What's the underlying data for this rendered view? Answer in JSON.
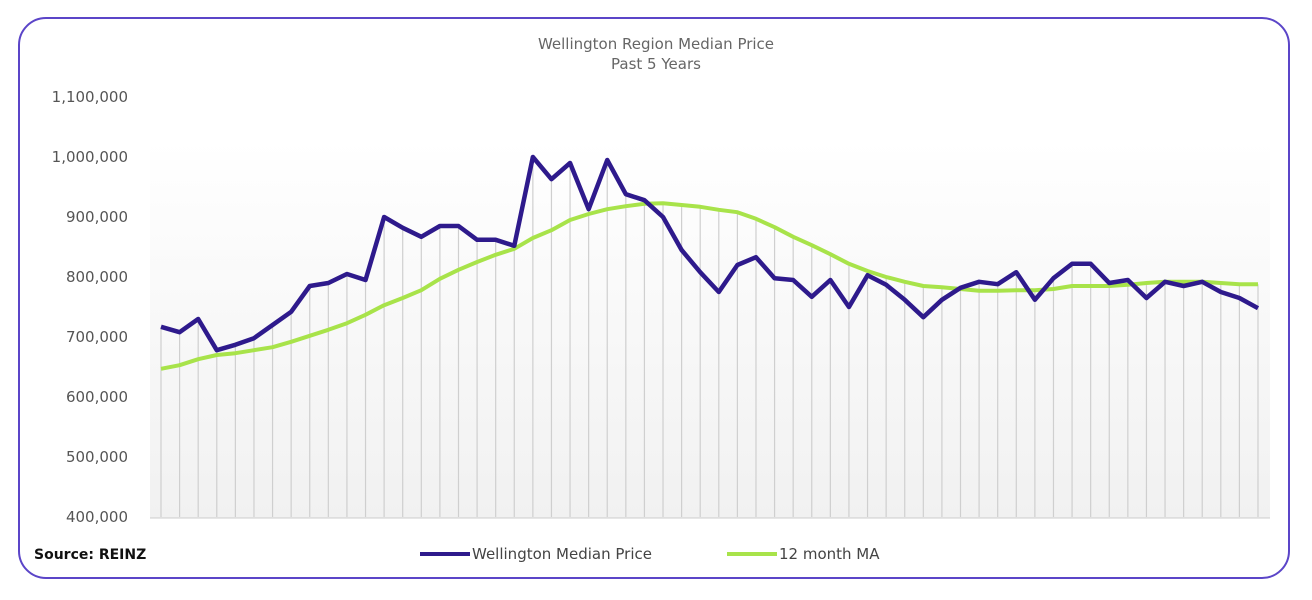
{
  "source_label": "Source: REINZ",
  "colors": {
    "median": "#2e1a8c",
    "ma": "#a8e34a",
    "border": "#5b45c8"
  },
  "chart_data": {
    "type": "line",
    "title": "Wellington Region Median Price",
    "subtitle": "Past 5 Years",
    "xlabel": "",
    "ylabel": "",
    "ylim": [
      400000,
      1100000
    ],
    "yticks": [
      400000,
      500000,
      600000,
      700000,
      800000,
      900000,
      1000000,
      1100000
    ],
    "ytick_labels": [
      "400,000",
      "500,000",
      "600,000",
      "700,000",
      "800,000",
      "900,000",
      "1,000,000",
      "1,100,000"
    ],
    "legend_position": "bottom",
    "series": [
      {
        "name": "Wellington Median Price",
        "values": [
          717000,
          708000,
          730000,
          678000,
          687000,
          698000,
          720000,
          742000,
          785000,
          790000,
          805000,
          795000,
          900000,
          882000,
          867000,
          885000,
          885000,
          862000,
          862000,
          852000,
          1000000,
          963000,
          990000,
          913000,
          995000,
          938000,
          928000,
          900000,
          845000,
          808000,
          775000,
          820000,
          833000,
          798000,
          795000,
          767000,
          795000,
          750000,
          803000,
          787000,
          762000,
          733000,
          762000,
          782000,
          792000,
          788000,
          808000,
          762000,
          798000,
          822000,
          822000,
          790000,
          795000,
          765000,
          792000,
          785000,
          792000,
          775000,
          765000,
          748000
        ]
      },
      {
        "name": "12 month MA",
        "values": [
          647000,
          653000,
          663000,
          670000,
          673000,
          678000,
          683000,
          692000,
          702000,
          712000,
          723000,
          737000,
          753000,
          765000,
          778000,
          797000,
          812000,
          825000,
          837000,
          847000,
          865000,
          878000,
          895000,
          905000,
          913000,
          918000,
          922000,
          923000,
          920000,
          917000,
          912000,
          908000,
          897000,
          883000,
          867000,
          853000,
          838000,
          822000,
          810000,
          800000,
          792000,
          785000,
          783000,
          780000,
          777000,
          777000,
          778000,
          778000,
          780000,
          785000,
          785000,
          785000,
          787000,
          790000,
          792000,
          792000,
          792000,
          790000,
          788000,
          788000
        ]
      }
    ]
  }
}
